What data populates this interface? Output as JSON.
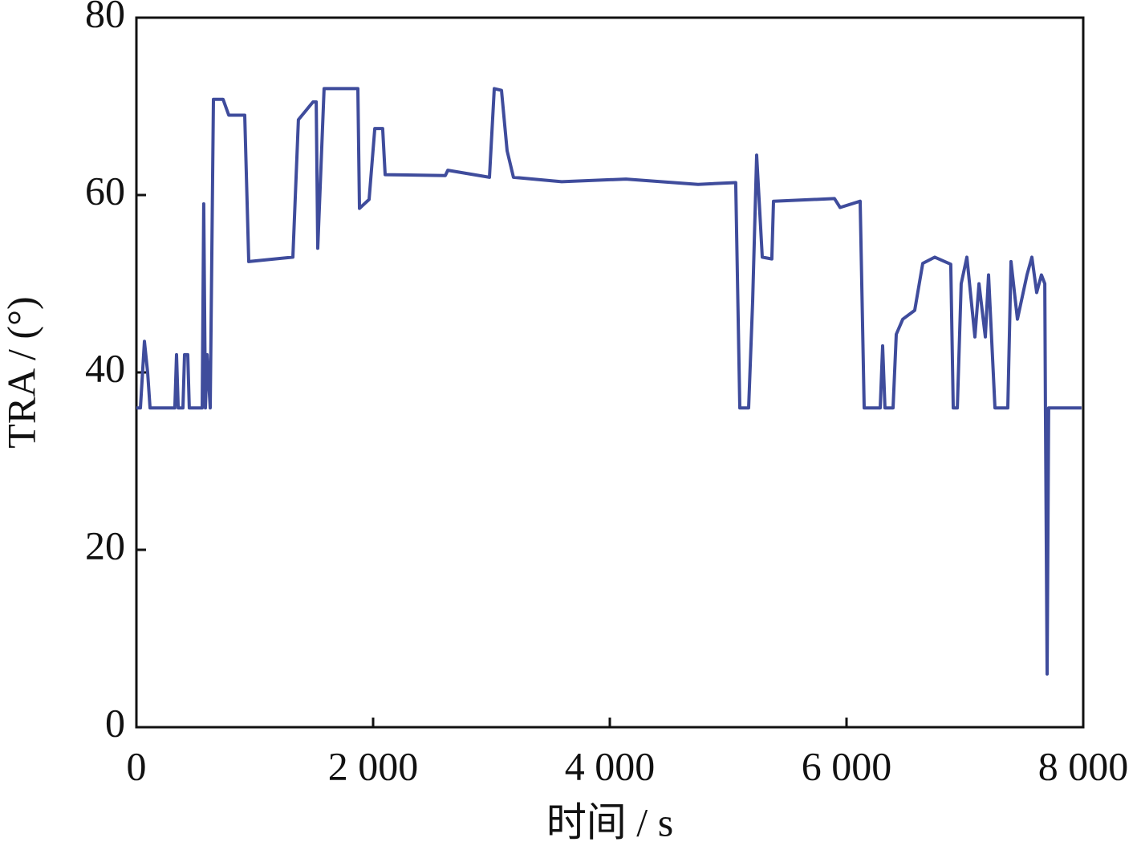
{
  "chart_data": {
    "type": "line",
    "xlabel": "时间 / s",
    "ylabel": "TRA / (°)",
    "xlim": [
      0,
      8000
    ],
    "ylim": [
      0,
      80
    ],
    "xticks": [
      0,
      {
        "value": 2000,
        "label": "2 000"
      },
      {
        "value": 4000,
        "label": "4 000"
      },
      {
        "value": 6000,
        "label": "6 000"
      },
      {
        "value": 8000,
        "label": "8 000"
      }
    ],
    "yticks": [
      0,
      20,
      40,
      60,
      80
    ],
    "grid": false,
    "series": [
      {
        "color": "#3f4c9c",
        "x": [
          0,
          34,
          68,
          95,
          115,
          325,
          339,
          353,
          393,
          407,
          434,
          447,
          556,
          569,
          583,
          597,
          624,
          651,
          732,
          780,
          915,
          949,
          1322,
          1369,
          1492,
          1519,
          1532,
          1586,
          1871,
          1885,
          1966,
          2014,
          2081,
          2102,
          2610,
          2631,
          2983,
          3024,
          3085,
          3132,
          3186,
          3593,
          4136,
          4746,
          5064,
          5098,
          5173,
          5207,
          5241,
          5288,
          5369,
          5383,
          5898,
          5946,
          6115,
          6149,
          6285,
          6305,
          6325,
          6393,
          6420,
          6475,
          6576,
          6644,
          6746,
          6881,
          6902,
          6936,
          6969,
          7017,
          7085,
          7119,
          7173,
          7200,
          7254,
          7363,
          7390,
          7444,
          7525,
          7566,
          7607,
          7647,
          7675,
          7681,
          7695,
          7708,
          7986
        ],
        "values": [
          36,
          36,
          43.5,
          40,
          36,
          36,
          42,
          36,
          36,
          42,
          42,
          36,
          36,
          59,
          36,
          42,
          36,
          70.8,
          70.8,
          69,
          69,
          52.5,
          53,
          68.5,
          70.5,
          70.5,
          54,
          72,
          72,
          58.5,
          59.5,
          67.5,
          67.5,
          62.3,
          62.2,
          62.8,
          62,
          72,
          71.8,
          65,
          62,
          61.5,
          61.8,
          61.2,
          61.4,
          36,
          36,
          48,
          64.5,
          53,
          52.8,
          59.3,
          59.6,
          58.6,
          59.3,
          36,
          36,
          43,
          36,
          36,
          44.3,
          46,
          47,
          52.3,
          53,
          52.2,
          36,
          36,
          50,
          53,
          44,
          50,
          44,
          51,
          36,
          36,
          52.5,
          46,
          51,
          53,
          49,
          51,
          50,
          36,
          6,
          36,
          36
        ]
      }
    ]
  }
}
